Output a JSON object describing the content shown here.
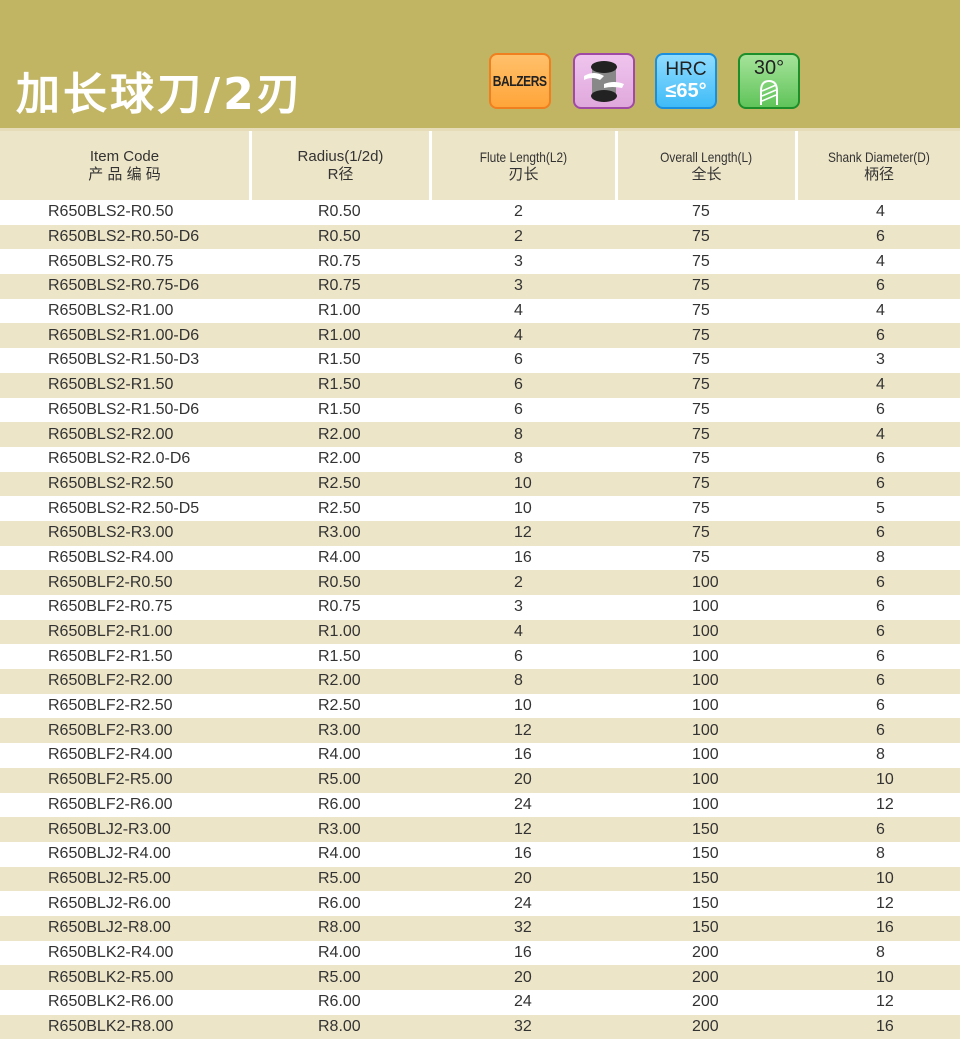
{
  "title": "加长球刀/2刃",
  "badges": {
    "coating": "BALZERS",
    "hardness_label": "HRC",
    "hardness_value": "≤65°",
    "helix_angle": "30°"
  },
  "colors": {
    "banner": "#c1b564",
    "row_alt": "#ede5c8"
  },
  "table": {
    "headers": [
      {
        "en": "Item Code",
        "zh": "产 品 编 码"
      },
      {
        "en": "Radius(1/2d)",
        "zh": "R径"
      },
      {
        "en": "Flute Length(L2)",
        "zh": "刃长"
      },
      {
        "en": "Overall Length(L)",
        "zh": "全长"
      },
      {
        "en": "Shank Diameter(D)",
        "zh": "柄径"
      }
    ],
    "rows": [
      [
        "R650BLS2-R0.50",
        "R0.50",
        "2",
        "75",
        "4"
      ],
      [
        "R650BLS2-R0.50-D6",
        "R0.50",
        "2",
        "75",
        "6"
      ],
      [
        "R650BLS2-R0.75",
        "R0.75",
        "3",
        "75",
        "4"
      ],
      [
        "R650BLS2-R0.75-D6",
        "R0.75",
        "3",
        "75",
        "6"
      ],
      [
        "R650BLS2-R1.00",
        "R1.00",
        "4",
        "75",
        "4"
      ],
      [
        "R650BLS2-R1.00-D6",
        "R1.00",
        "4",
        "75",
        "6"
      ],
      [
        "R650BLS2-R1.50-D3",
        "R1.50",
        "6",
        "75",
        "3"
      ],
      [
        "R650BLS2-R1.50",
        "R1.50",
        "6",
        "75",
        "4"
      ],
      [
        "R650BLS2-R1.50-D6",
        "R1.50",
        "6",
        "75",
        "6"
      ],
      [
        "R650BLS2-R2.00",
        "R2.00",
        "8",
        "75",
        "4"
      ],
      [
        "R650BLS2-R2.0-D6",
        "R2.00",
        "8",
        "75",
        "6"
      ],
      [
        "R650BLS2-R2.50",
        "R2.50",
        "10",
        "75",
        "6"
      ],
      [
        "R650BLS2-R2.50-D5",
        "R2.50",
        "10",
        "75",
        "5"
      ],
      [
        "R650BLS2-R3.00",
        "R3.00",
        "12",
        "75",
        "6"
      ],
      [
        "R650BLS2-R4.00",
        "R4.00",
        "16",
        "75",
        "8"
      ],
      [
        "R650BLF2-R0.50",
        "R0.50",
        "2",
        "100",
        "6"
      ],
      [
        "R650BLF2-R0.75",
        "R0.75",
        "3",
        "100",
        "6"
      ],
      [
        "R650BLF2-R1.00",
        "R1.00",
        "4",
        "100",
        "6"
      ],
      [
        "R650BLF2-R1.50",
        "R1.50",
        "6",
        "100",
        "6"
      ],
      [
        "R650BLF2-R2.00",
        "R2.00",
        "8",
        "100",
        "6"
      ],
      [
        "R650BLF2-R2.50",
        "R2.50",
        "10",
        "100",
        "6"
      ],
      [
        "R650BLF2-R3.00",
        "R3.00",
        "12",
        "100",
        "6"
      ],
      [
        "R650BLF2-R4.00",
        "R4.00",
        "16",
        "100",
        "8"
      ],
      [
        "R650BLF2-R5.00",
        "R5.00",
        "20",
        "100",
        "10"
      ],
      [
        "R650BLF2-R6.00",
        "R6.00",
        "24",
        "100",
        "12"
      ],
      [
        "R650BLJ2-R3.00",
        "R3.00",
        "12",
        "150",
        "6"
      ],
      [
        "R650BLJ2-R4.00",
        "R4.00",
        "16",
        "150",
        "8"
      ],
      [
        "R650BLJ2-R5.00",
        "R5.00",
        "20",
        "150",
        "10"
      ],
      [
        "R650BLJ2-R6.00",
        "R6.00",
        "24",
        "150",
        "12"
      ],
      [
        "R650BLJ2-R8.00",
        "R8.00",
        "32",
        "150",
        "16"
      ],
      [
        "R650BLK2-R4.00",
        "R4.00",
        "16",
        "200",
        "8"
      ],
      [
        "R650BLK2-R5.00",
        "R5.00",
        "20",
        "200",
        "10"
      ],
      [
        "R650BLK2-R6.00",
        "R6.00",
        "24",
        "200",
        "12"
      ],
      [
        "R650BLK2-R8.00",
        "R8.00",
        "32",
        "200",
        "16"
      ]
    ]
  }
}
